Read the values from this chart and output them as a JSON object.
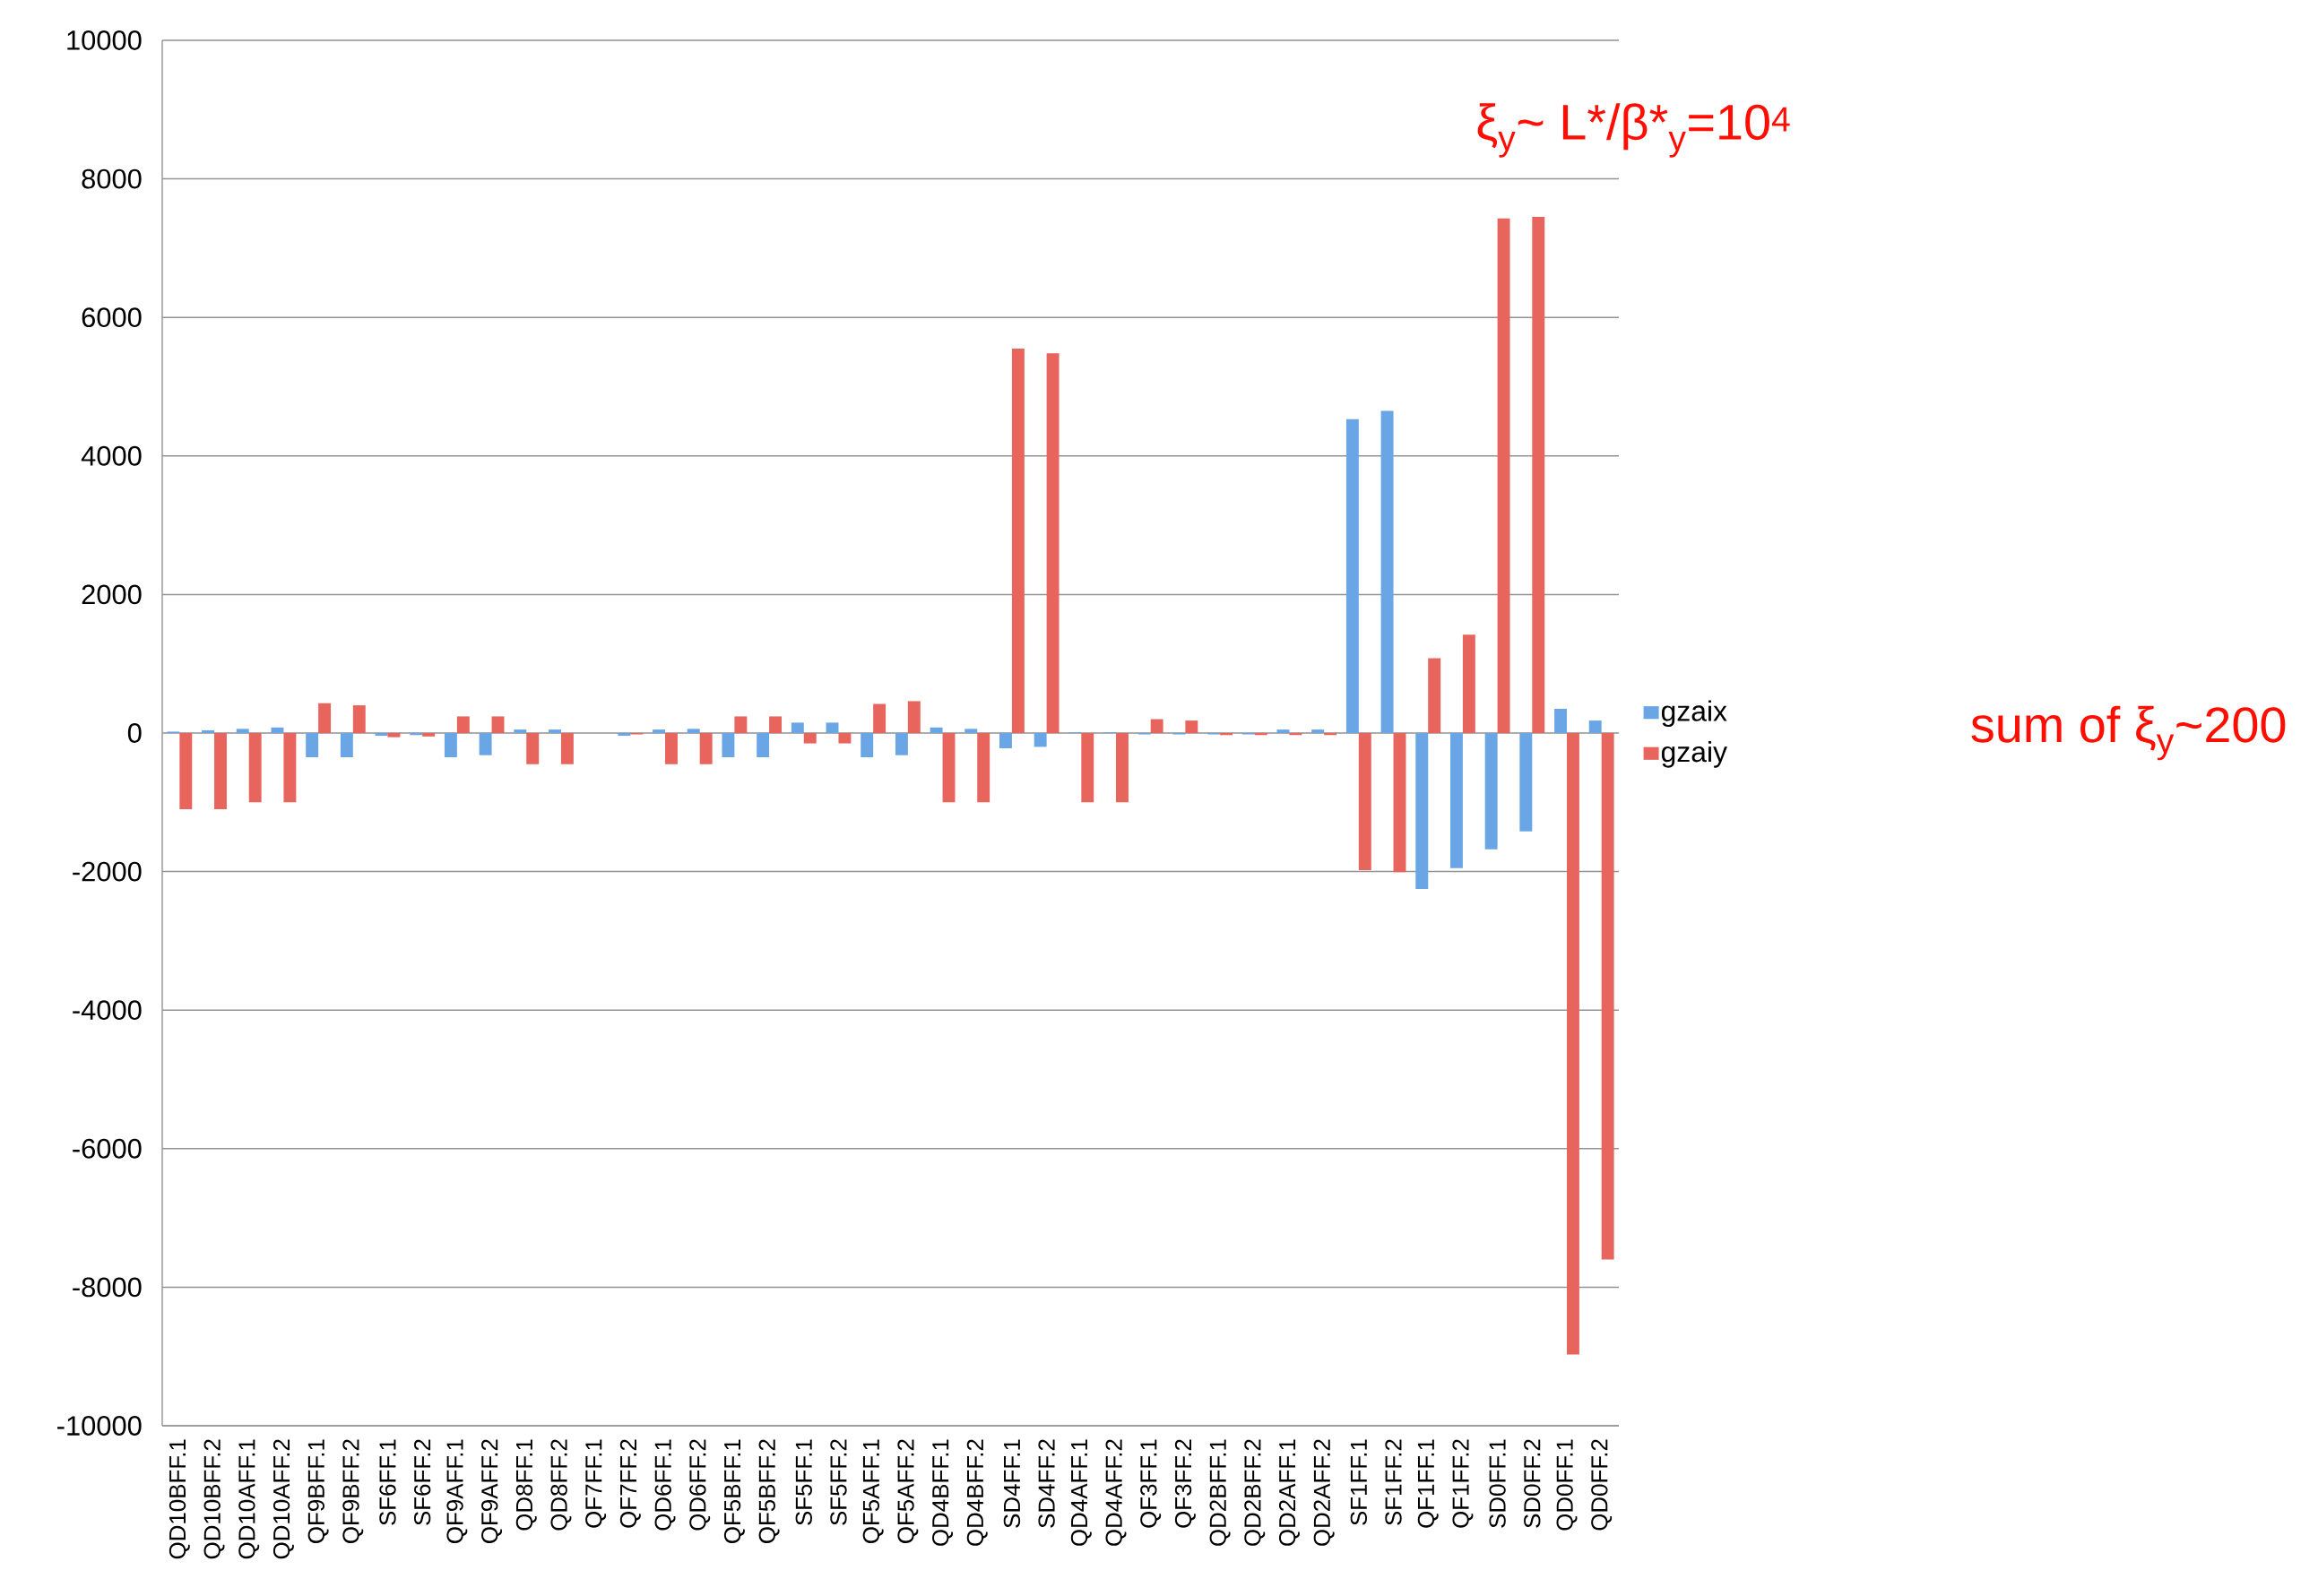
{
  "chart_data": {
    "type": "bar",
    "categories": [
      "QD10BFF.1",
      "QD10BFF.2",
      "QD10AFF.1",
      "QD10AFF.2",
      "QF9BFF.1",
      "QF9BFF.2",
      "SF6FF.1",
      "SF6FF.2",
      "QF9AFF.1",
      "QF9AFF.2",
      "QD8FF.1",
      "QD8FF.2",
      "QF7FF.1",
      "QF7FF.2",
      "QD6FF.1",
      "QD6FF.2",
      "QF5BFF.1",
      "QF5BFF.2",
      "SF5FF.1",
      "SF5FF.2",
      "QF5AFF.1",
      "QF5AFF.2",
      "QD4BFF.1",
      "QD4BFF.2",
      "SD4FF.1",
      "SD4FF.2",
      "QD4AFF.1",
      "QD4AFF.2",
      "QF3FF.1",
      "QF3FF.2",
      "QD2BFF.1",
      "QD2BFF.2",
      "QD2AFF.1",
      "QD2AFF.2",
      "SF1FF.1",
      "SF1FF.2",
      "QF1FF.1",
      "QF1FF.2",
      "SD0FF.1",
      "SD0FF.2",
      "QD0FF.1",
      "QD0FF.2"
    ],
    "series": [
      {
        "name": "gzaix",
        "color": "#6aa6e6",
        "values": [
          20,
          40,
          60,
          80,
          -350,
          -350,
          -40,
          -30,
          -350,
          -320,
          50,
          50,
          0,
          -40,
          50,
          60,
          -350,
          -350,
          150,
          150,
          -350,
          -320,
          80,
          60,
          -220,
          -200,
          10,
          10,
          -20,
          -20,
          -20,
          -20,
          50,
          50,
          4530,
          4650,
          -2250,
          -1950,
          -1680,
          -1420,
          350,
          180
        ]
      },
      {
        "name": "gzaiy",
        "color": "#e8655d",
        "values": [
          -1100,
          -1100,
          -1000,
          -1000,
          430,
          400,
          -60,
          -50,
          240,
          240,
          -450,
          -450,
          0,
          -20,
          -450,
          -450,
          240,
          240,
          -150,
          -150,
          420,
          460,
          -1000,
          -1000,
          5550,
          5480,
          -1000,
          -1000,
          200,
          180,
          -30,
          -30,
          -30,
          -30,
          -1980,
          -2010,
          1080,
          1420,
          7430,
          7450,
          -8970,
          -7600
        ]
      }
    ],
    "ylim": [
      -10000,
      10000
    ],
    "yticks": [
      -10000,
      -8000,
      -6000,
      -4000,
      -2000,
      0,
      2000,
      4000,
      6000,
      8000,
      10000
    ],
    "grid": "y",
    "legend": "right",
    "annotations": [
      "ξ$_{y}$~ L*/β*$_{y}$=10$^{4}$",
      "sum of  ξ$_{y}$~200"
    ]
  }
}
